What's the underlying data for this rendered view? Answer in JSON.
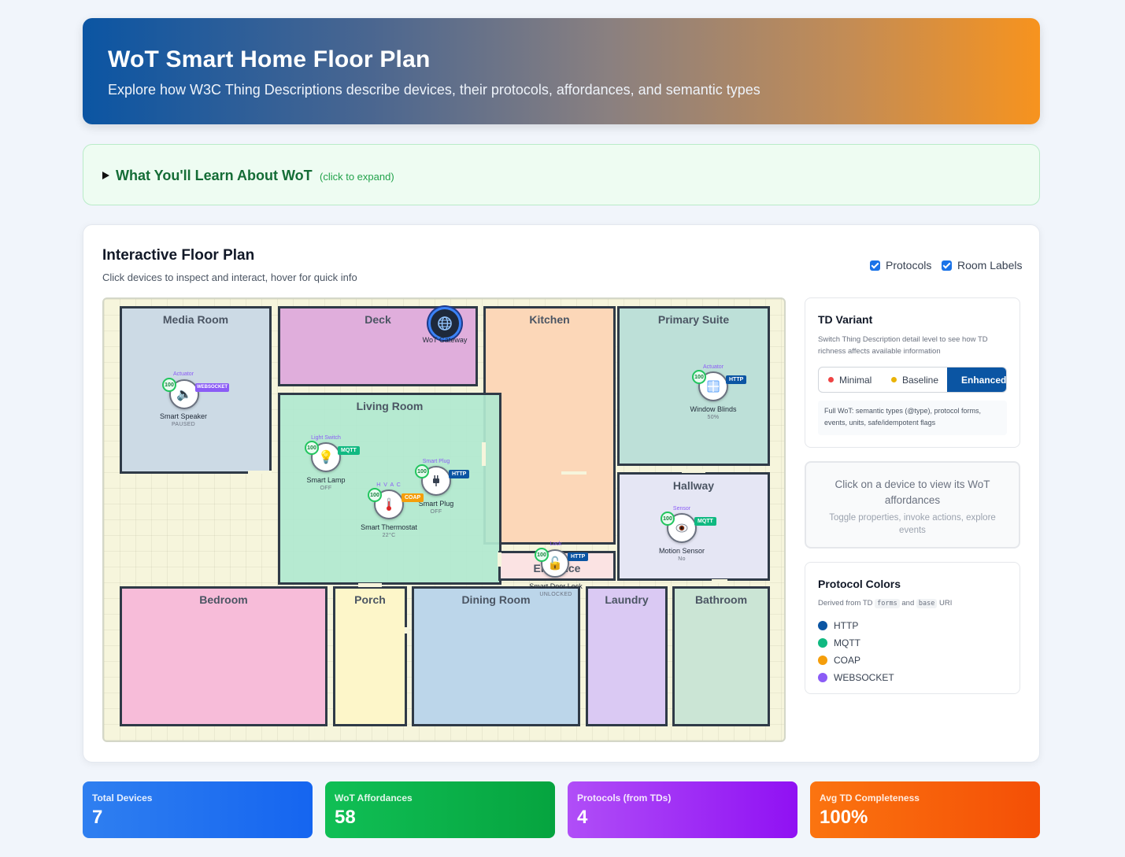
{
  "header": {
    "title": "WoT Smart Home Floor Plan",
    "subtitle": "Explore how W3C Thing Descriptions describe devices, their protocols, affordances, and semantic types"
  },
  "learn": {
    "title": "What You'll Learn About WoT",
    "hint": "(click to expand)"
  },
  "floorplan": {
    "title": "Interactive Floor Plan",
    "subtitle": "Click devices to inspect and interact, hover for quick info",
    "toggles": [
      {
        "label": "Protocols",
        "checked": true
      },
      {
        "label": "Room Labels",
        "checked": true
      }
    ],
    "rooms": {
      "media_room": "Media Room",
      "deck": "Deck",
      "kitchen": "Kitchen",
      "primary_suite": "Primary Suite",
      "living_room": "Living Room",
      "hallway": "Hallway",
      "entrance": "Entrance",
      "bedroom": "Bedroom",
      "porch": "Porch",
      "dining_room": "Dining Room",
      "laundry": "Laundry",
      "bathroom": "Bathroom"
    },
    "gateway": {
      "label": "WoT Gateway",
      "icon": "globe-icon"
    },
    "devices": {
      "speaker": {
        "name": "Smart Speaker",
        "state": "PAUSED",
        "type": "Actuator",
        "protocol": "WEBSOCKET",
        "score": "100",
        "icon": "speaker-icon",
        "color": "#8b5cf6"
      },
      "lamp": {
        "name": "Smart Lamp",
        "state": "OFF",
        "type": "Light Switch",
        "protocol": "MQTT",
        "score": "100",
        "icon": "bulb-icon",
        "color": "#10b981"
      },
      "plug": {
        "name": "Smart Plug",
        "state": "OFF",
        "type": "Smart Plug",
        "protocol": "HTTP",
        "score": "100",
        "icon": "plug-icon",
        "color": "#0b55a3"
      },
      "thermostat": {
        "name": "Smart Thermostat",
        "state": "22°C",
        "type": "H V A C",
        "protocol": "COAP",
        "score": "100",
        "icon": "thermometer-icon",
        "color": "#f59e0b"
      },
      "blinds": {
        "name": "Window Blinds",
        "state": "50%",
        "type": "Actuator",
        "protocol": "HTTP",
        "score": "100",
        "icon": "window-icon",
        "color": "#0b55a3"
      },
      "motion": {
        "name": "Motion Sensor",
        "state": "No",
        "type": "Sensor",
        "protocol": "MQTT",
        "score": "100",
        "icon": "eye-icon",
        "color": "#10b981"
      },
      "lock": {
        "name": "Smart Door Lock",
        "state": "UNLOCKED",
        "type": "Lock",
        "protocol": "HTTP",
        "score": "100",
        "icon": "lock-icon",
        "color": "#0b55a3"
      }
    }
  },
  "td_variant": {
    "title": "TD Variant",
    "description": "Switch Thing Description detail level to see how TD richness affects available information",
    "options": [
      {
        "label": "Minimal",
        "color": "#ef4444"
      },
      {
        "label": "Baseline",
        "color": "#eab308"
      },
      {
        "label": "Enhanced",
        "color": "#22c55e"
      }
    ],
    "selected": "Enhanced",
    "note": "Full WoT: semantic types (@type), protocol forms, events, units, safe/idempotent flags"
  },
  "inspector": {
    "prompt": "Click on a device to view its WoT affordances",
    "hint": "Toggle properties, invoke actions, explore events"
  },
  "protocol_colors": {
    "title": "Protocol Colors",
    "desc_prefix": "Derived from TD",
    "code_forms": "forms",
    "desc_and": "and",
    "code_base": "base",
    "desc_suffix": "URI",
    "items": [
      {
        "label": "HTTP",
        "color": "#0b55a3"
      },
      {
        "label": "MQTT",
        "color": "#10b981"
      },
      {
        "label": "COAP",
        "color": "#f59e0b"
      },
      {
        "label": "WEBSOCKET",
        "color": "#8b5cf6"
      }
    ]
  },
  "stats": [
    {
      "label": "Total Devices",
      "value": "7"
    },
    {
      "label": "WoT Affordances",
      "value": "58"
    },
    {
      "label": "Protocols (from TDs)",
      "value": "4"
    },
    {
      "label": "Avg TD Completeness",
      "value": "100%"
    }
  ]
}
